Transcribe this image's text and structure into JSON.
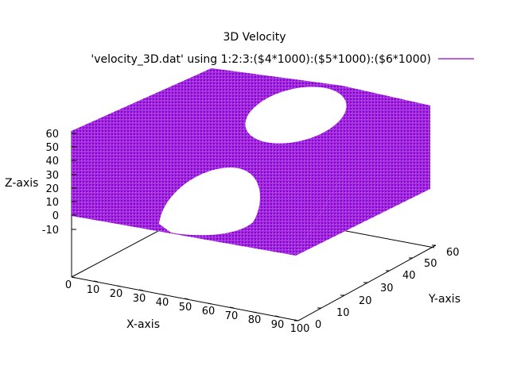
{
  "chart_data": {
    "type": "scatter",
    "title": "3D Velocity",
    "series": [
      {
        "name": "'velocity_3D.dat' using 1:2:3:($4*1000):($5*1000):($6*1000)",
        "color": "#9400d3",
        "marker": "vector-arrows"
      }
    ],
    "xlabel": "X-axis",
    "ylabel": "Y-axis",
    "zlabel": "Z-axis",
    "xlim": [
      0,
      100
    ],
    "ylim": [
      0,
      60
    ],
    "zlim": [
      -10,
      60
    ],
    "x_ticks": [
      "0",
      "10",
      "20",
      "30",
      "40",
      "50",
      "60",
      "70",
      "80",
      "90",
      "100"
    ],
    "y_ticks": [
      "0",
      "10",
      "20",
      "30",
      "40",
      "50",
      "60"
    ],
    "z_ticks": [
      "60",
      "50",
      "40",
      "30",
      "20",
      "10",
      "0",
      "-10"
    ],
    "box": {
      "x": [
        0,
        100
      ],
      "y": [
        0,
        60
      ],
      "z": [
        0,
        60
      ]
    },
    "holes": [
      {
        "face": "top",
        "center_x": 50,
        "center_y": 30,
        "radius": 13
      },
      {
        "face": "bottom",
        "center_x": 50,
        "center_y": 30,
        "radius": 13
      }
    ],
    "grid": false,
    "legend_position": "top-right"
  }
}
